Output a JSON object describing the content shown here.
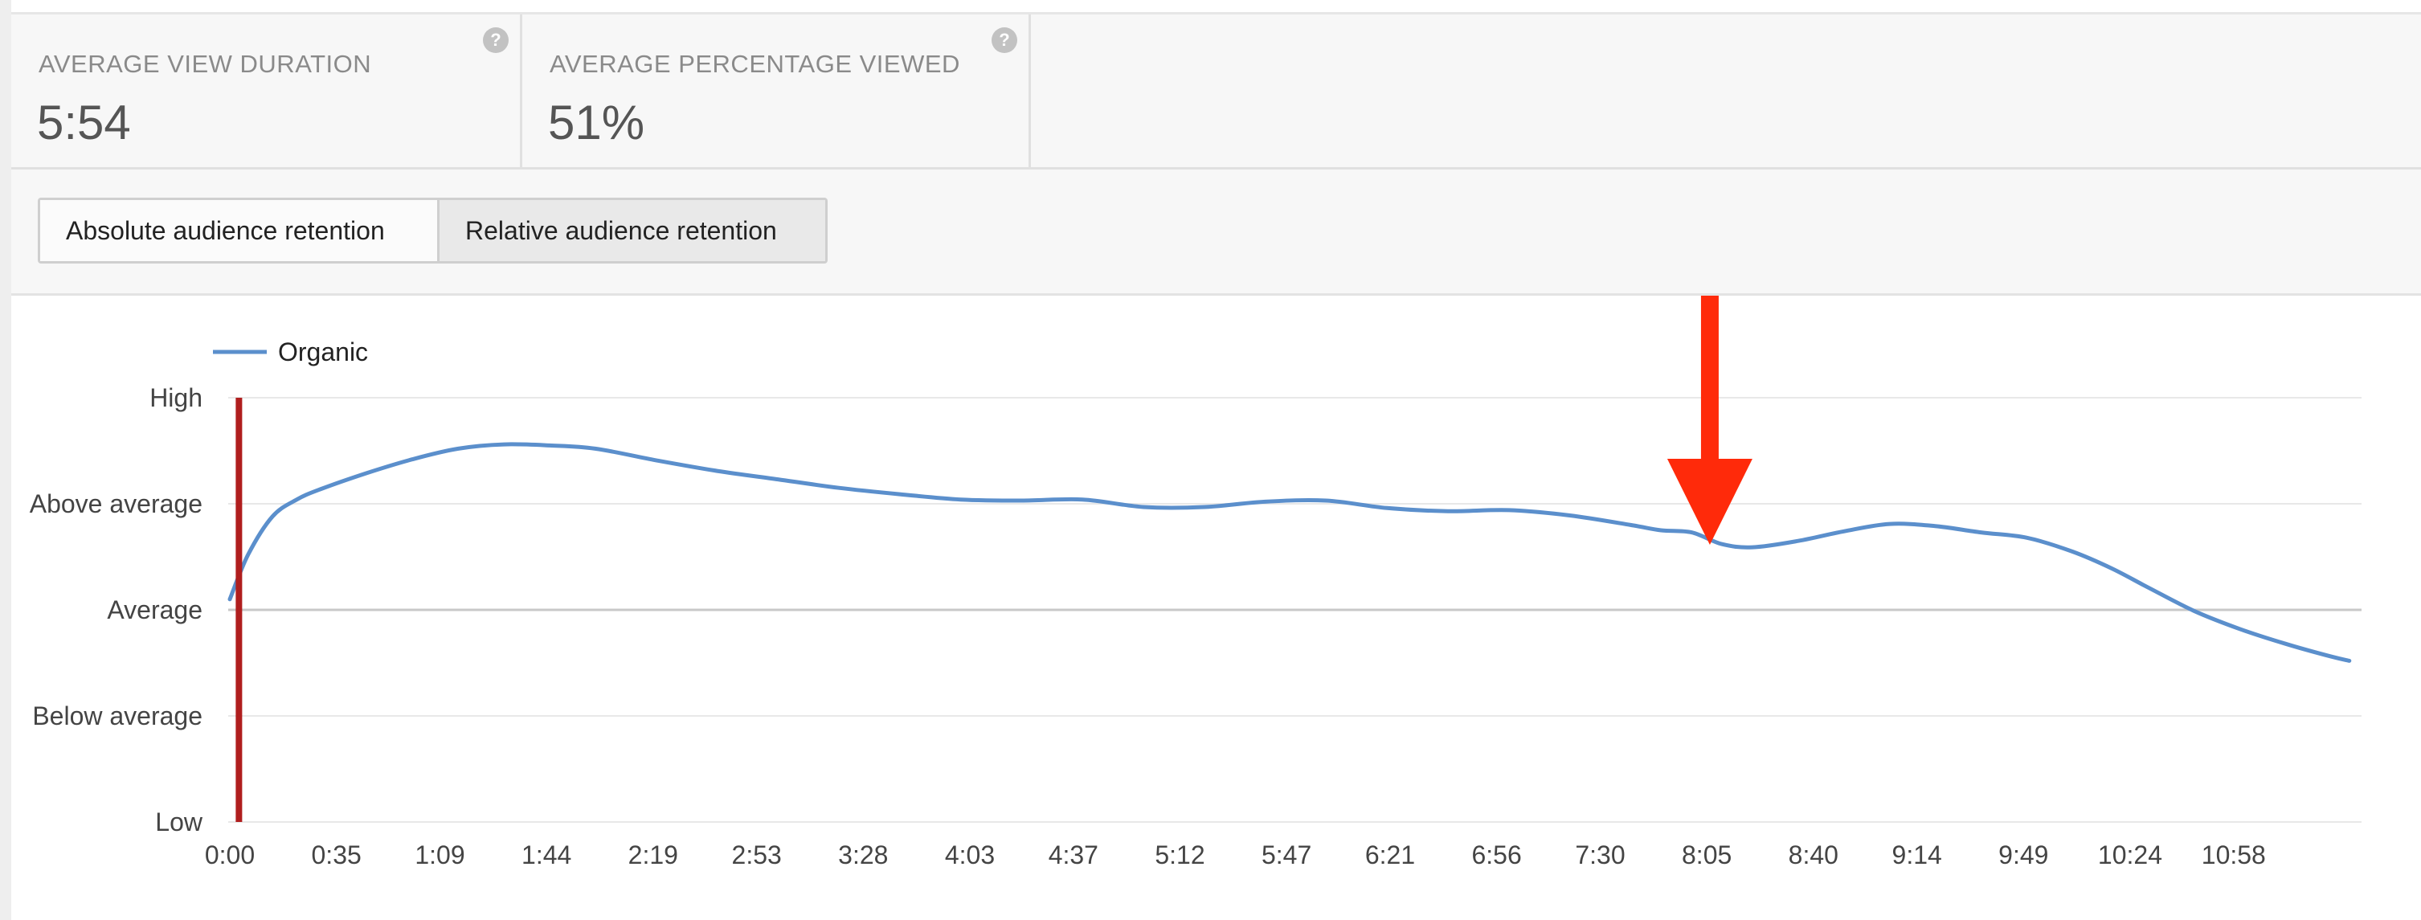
{
  "metrics": [
    {
      "label": "AVERAGE VIEW DURATION",
      "value": "5:54",
      "help": "?"
    },
    {
      "label": "AVERAGE PERCENTAGE VIEWED",
      "value": "51%",
      "help": "?"
    }
  ],
  "toggle": {
    "absolute_label": "Absolute audience retention",
    "relative_label": "Relative audience retention",
    "selected": "relative"
  },
  "colors": {
    "series": "#5b8fcc",
    "marker": "#b01e1e",
    "arrow": "#ff2a0a",
    "grid": "#e8e8e8",
    "average_line": "#c8c8c8"
  },
  "chart_data": {
    "type": "line",
    "title": "",
    "xlabel": "",
    "ylabel": "",
    "y_levels": [
      "Low",
      "Below average",
      "Average",
      "Above average",
      "High"
    ],
    "ylim": [
      0,
      4
    ],
    "x_ticks": [
      "0:00",
      "0:35",
      "1:09",
      "1:44",
      "2:19",
      "2:53",
      "3:28",
      "4:03",
      "4:37",
      "5:12",
      "5:47",
      "6:21",
      "6:56",
      "7:30",
      "8:05",
      "8:40",
      "9:14",
      "9:49",
      "10:24",
      "10:58"
    ],
    "xlim_seconds": [
      0,
      700
    ],
    "legend": {
      "position": "top-left"
    },
    "grid": true,
    "annotations": [
      {
        "type": "vertical-marker",
        "x_seconds": 3
      },
      {
        "type": "down-arrow",
        "x_seconds": 486,
        "pointing_at": "local-dip"
      }
    ],
    "series": [
      {
        "name": "Organic",
        "x_seconds": [
          0,
          6,
          14,
          22,
          30,
          45,
          60,
          75,
          90,
          105,
          120,
          140,
          160,
          180,
          200,
          220,
          240,
          260,
          280,
          300,
          320,
          340,
          360,
          380,
          400,
          420,
          440,
          460,
          470,
          480,
          490,
          500,
          515,
          530,
          545,
          560,
          575,
          590,
          605,
          618,
          630,
          645,
          660,
          675,
          690,
          696
        ],
        "values": [
          2.1,
          2.52,
          2.88,
          3.04,
          3.14,
          3.29,
          3.42,
          3.52,
          3.56,
          3.55,
          3.52,
          3.41,
          3.31,
          3.23,
          3.15,
          3.09,
          3.04,
          3.03,
          3.04,
          2.97,
          2.97,
          3.02,
          3.03,
          2.96,
          2.93,
          2.94,
          2.89,
          2.8,
          2.75,
          2.73,
          2.62,
          2.59,
          2.65,
          2.74,
          2.81,
          2.79,
          2.73,
          2.68,
          2.55,
          2.39,
          2.21,
          1.99,
          1.82,
          1.68,
          1.56,
          1.52
        ]
      }
    ]
  }
}
